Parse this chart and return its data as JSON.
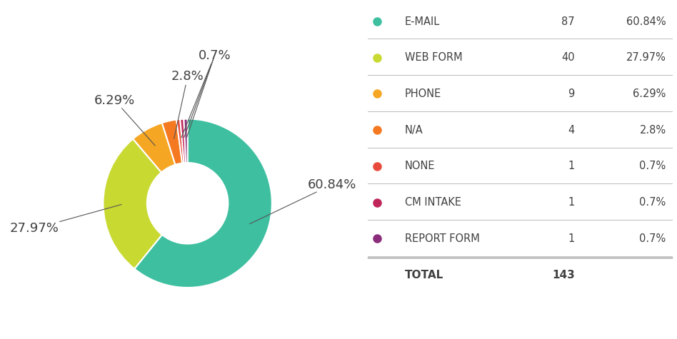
{
  "labels": [
    "E-MAIL",
    "WEB FORM",
    "PHONE",
    "N/A",
    "NONE",
    "CM INTAKE",
    "REPORT FORM"
  ],
  "values": [
    60.84,
    27.97,
    6.29,
    2.8,
    0.7,
    0.7,
    0.7
  ],
  "counts": [
    87,
    40,
    9,
    4,
    1,
    1,
    1
  ],
  "percentages": [
    "60.84%",
    "27.97%",
    "6.29%",
    "2.8%",
    "0.7%",
    "0.7%",
    "0.7%"
  ],
  "colors": [
    "#3dbfa0",
    "#c8d932",
    "#f5a623",
    "#f47920",
    "#e84a3b",
    "#c0255a",
    "#8b2d7a"
  ],
  "background_color": "#ffffff",
  "text_color": "#404040",
  "total": 143,
  "label_fontsize": 13,
  "legend_fontsize": 10.5
}
